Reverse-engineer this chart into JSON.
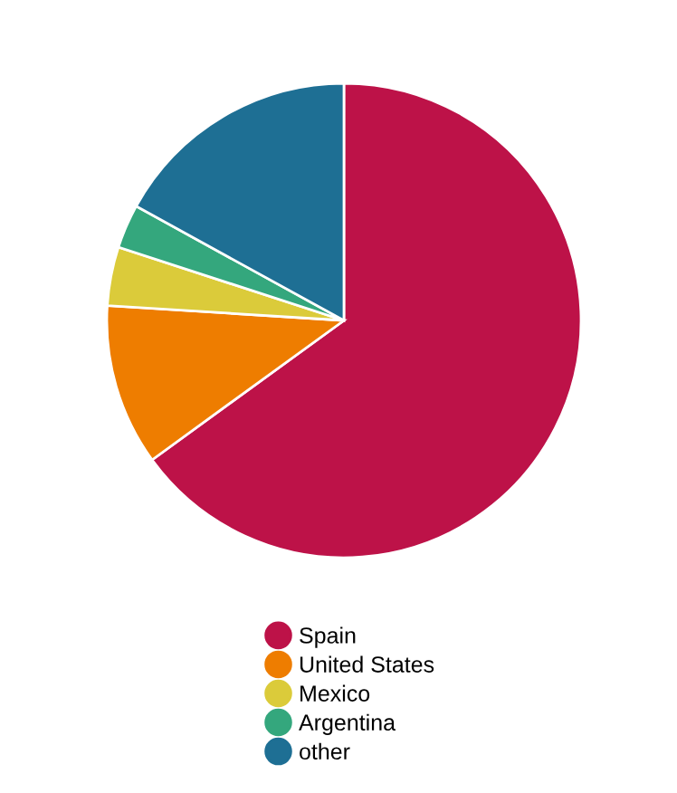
{
  "chart_data": {
    "type": "pie",
    "categories": [
      "Spain",
      "United States",
      "Mexico",
      "Argentina",
      "other"
    ],
    "values": [
      65,
      11,
      4,
      3,
      17
    ],
    "colors": [
      "#bd1248",
      "#ee7d00",
      "#dbcb3a",
      "#34a77d",
      "#1e6f94"
    ],
    "legend": "bottom"
  }
}
